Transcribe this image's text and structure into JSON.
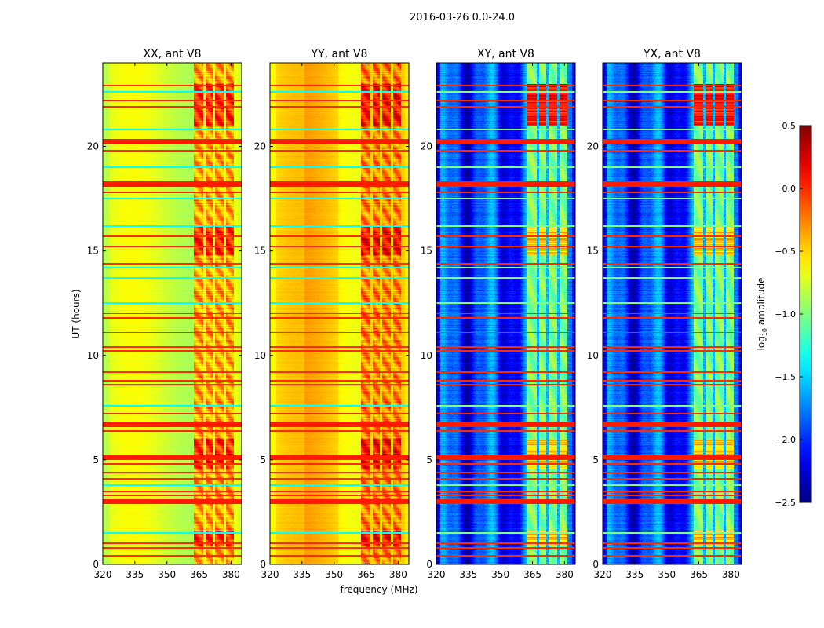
{
  "chart_data": {
    "type": "heatmap",
    "suptitle": "2016-03-26 0.0-24.0",
    "xlabel": "frequency (MHz)",
    "ylabel": "UT (hours)",
    "xlim": [
      320,
      385
    ],
    "ylim": [
      0,
      24
    ],
    "xticks": [
      "320",
      "335",
      "350",
      "365",
      "380"
    ],
    "xtick_values": [
      320,
      335,
      350,
      365,
      380
    ],
    "yticks": [
      "0",
      "5",
      "10",
      "15",
      "20"
    ],
    "ytick_values": [
      0,
      5,
      10,
      15,
      20
    ],
    "panels": [
      {
        "title": "XX, ant V8",
        "kind": "auto",
        "base": -0.75,
        "band_level": -0.1
      },
      {
        "title": "YY, ant V8",
        "kind": "auto",
        "base": -0.55,
        "band_level": 0.0
      },
      {
        "title": "XY, ant V8",
        "kind": "cross",
        "base": -1.95,
        "band_level": -1.0
      },
      {
        "title": "YX, ant V8",
        "kind": "cross",
        "base": -1.95,
        "band_level": -1.0
      }
    ],
    "bright_channels_mhz": [
      [
        362.5,
        367
      ],
      [
        368,
        371.5
      ],
      [
        372.5,
        376.5
      ],
      [
        377.5,
        381.5
      ]
    ],
    "rfi_strong_hours": [
      20.25,
      18.2,
      6.7,
      5.1,
      3.0
    ],
    "rfi_thin_hours": [
      22.9,
      22.2,
      21.9,
      19.8,
      17.8,
      15.7,
      15.2,
      14.4,
      12.0,
      11.8,
      11.1,
      10.4,
      10.2,
      9.2,
      8.8,
      8.6,
      7.2,
      6.4,
      4.8,
      4.4,
      4.1,
      3.5,
      3.3,
      1.0,
      0.8,
      0.4
    ],
    "low_lines_hours": [
      22.6,
      20.8,
      19.0,
      17.5,
      16.2,
      14.2,
      13.7,
      12.5,
      7.6,
      3.8,
      1.5
    ],
    "hot_periods_hours": [
      [
        21.0,
        23.0
      ],
      [
        14.8,
        16.2
      ],
      [
        4.6,
        6.0
      ],
      [
        0.9,
        1.6
      ]
    ],
    "colorbar": {
      "label": "log10 amplitude",
      "label_main": "log",
      "label_sub": "10",
      "label_rest": " amplitude",
      "colormap": "jet",
      "range": [
        -2.5,
        0.5
      ],
      "ticks": [
        "0.5",
        "0.0",
        "−0.5",
        "−1.0",
        "−1.5",
        "−2.0",
        "−2.5"
      ],
      "tick_values": [
        0.5,
        0.0,
        -0.5,
        -1.0,
        -1.5,
        -2.0,
        -2.5
      ]
    }
  }
}
